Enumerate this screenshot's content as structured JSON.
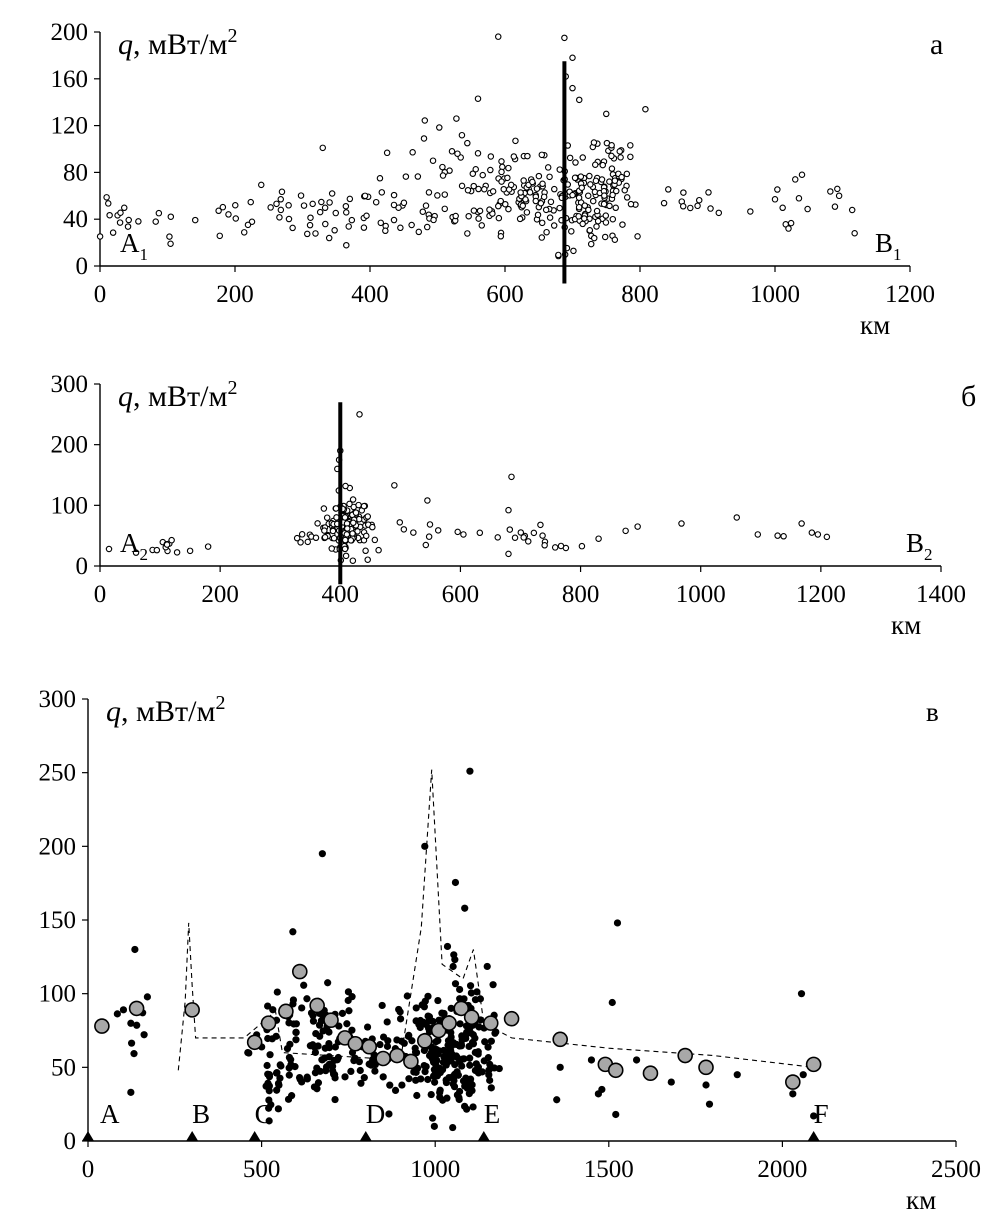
{
  "chart_data": [
    {
      "type": "scatter",
      "panel_label": "а",
      "ylabel_var": "q",
      "ylabel_unit": ", мВт/м",
      "ylabel_sup": "2",
      "xlabel": "км",
      "xlim": [
        0,
        1200
      ],
      "ylim": [
        0,
        200
      ],
      "xticks": [
        "0",
        "200",
        "400",
        "600",
        "800",
        "1000",
        "1200"
      ],
      "yticks": [
        "0",
        "40",
        "80",
        "120",
        "160",
        "200"
      ],
      "marker": "open-circle",
      "profile_start": {
        "letter": "A",
        "sub": "1"
      },
      "profile_end": {
        "letter": "B",
        "sub": "1"
      },
      "vertical_line": {
        "x": 688,
        "y1": -15,
        "y2": 175
      },
      "clusters": [
        {
          "x": 20,
          "y": 42,
          "sx": 25,
          "sy": 12,
          "n": 14
        },
        {
          "x": 120,
          "y": 40,
          "sx": 50,
          "sy": 8,
          "n": 10
        },
        {
          "x": 250,
          "y": 45,
          "sx": 30,
          "sy": 12,
          "n": 14
        },
        {
          "x": 340,
          "y": 42,
          "sx": 35,
          "sy": 12,
          "n": 30
        },
        {
          "x": 440,
          "y": 45,
          "sx": 40,
          "sy": 12,
          "n": 20
        },
        {
          "x": 540,
          "y": 70,
          "sx": 50,
          "sy": 25,
          "n": 60
        },
        {
          "x": 630,
          "y": 60,
          "sx": 35,
          "sy": 15,
          "n": 60
        },
        {
          "x": 710,
          "y": 58,
          "sx": 30,
          "sy": 20,
          "n": 120
        },
        {
          "x": 760,
          "y": 75,
          "sx": 25,
          "sy": 25,
          "n": 40
        },
        {
          "x": 880,
          "y": 55,
          "sx": 30,
          "sy": 8,
          "n": 10
        },
        {
          "x": 1030,
          "y": 50,
          "sx": 40,
          "sy": 15,
          "n": 12
        }
      ],
      "points": [
        {
          "x": 590,
          "y": 196
        },
        {
          "x": 688,
          "y": 195
        },
        {
          "x": 700,
          "y": 178
        },
        {
          "x": 690,
          "y": 162
        },
        {
          "x": 700,
          "y": 152
        },
        {
          "x": 710,
          "y": 142
        },
        {
          "x": 560,
          "y": 143
        },
        {
          "x": 808,
          "y": 134
        },
        {
          "x": 750,
          "y": 130
        },
        {
          "x": 528,
          "y": 126
        },
        {
          "x": 480,
          "y": 109
        },
        {
          "x": 330,
          "y": 101
        },
        {
          "x": 1040,
          "y": 78
        },
        {
          "x": 1095,
          "y": 60
        },
        {
          "x": 1118,
          "y": 28
        },
        {
          "x": 1000,
          "y": 57
        },
        {
          "x": 1020,
          "y": 32
        }
      ]
    },
    {
      "type": "scatter",
      "panel_label": "б",
      "ylabel_var": "q",
      "ylabel_unit": ", мВт/м",
      "ylabel_sup": "2",
      "xlabel": "км",
      "xlim": [
        0,
        1400
      ],
      "ylim": [
        0,
        300
      ],
      "xticks": [
        "0",
        "200",
        "400",
        "600",
        "800",
        "1000",
        "1200",
        "1400"
      ],
      "yticks": [
        "0",
        "100",
        "200",
        "300"
      ],
      "marker": "open-circle",
      "profile_start": {
        "letter": "A",
        "sub": "2"
      },
      "profile_end": {
        "letter": "B",
        "sub": "2"
      },
      "vertical_line": {
        "x": 400,
        "y1": -30,
        "y2": 270
      },
      "clusters": [
        {
          "x": 100,
          "y": 30,
          "sx": 15,
          "sy": 8,
          "n": 10
        },
        {
          "x": 340,
          "y": 48,
          "sx": 8,
          "sy": 6,
          "n": 6
        },
        {
          "x": 410,
          "y": 62,
          "sx": 20,
          "sy": 25,
          "n": 130
        },
        {
          "x": 540,
          "y": 60,
          "sx": 50,
          "sy": 15,
          "n": 10
        },
        {
          "x": 700,
          "y": 45,
          "sx": 30,
          "sy": 12,
          "n": 10
        },
        {
          "x": 780,
          "y": 32,
          "sx": 20,
          "sy": 4,
          "n": 6
        }
      ],
      "points": [
        {
          "x": 400,
          "y": 190
        },
        {
          "x": 398,
          "y": 175
        },
        {
          "x": 395,
          "y": 160
        },
        {
          "x": 432,
          "y": 250
        },
        {
          "x": 685,
          "y": 147
        },
        {
          "x": 680,
          "y": 92
        },
        {
          "x": 490,
          "y": 133
        },
        {
          "x": 545,
          "y": 108
        },
        {
          "x": 605,
          "y": 52
        },
        {
          "x": 680,
          "y": 20
        },
        {
          "x": 830,
          "y": 45
        },
        {
          "x": 875,
          "y": 58
        },
        {
          "x": 895,
          "y": 65
        },
        {
          "x": 968,
          "y": 70
        },
        {
          "x": 1060,
          "y": 80
        },
        {
          "x": 1095,
          "y": 52
        },
        {
          "x": 1128,
          "y": 50
        },
        {
          "x": 1138,
          "y": 49
        },
        {
          "x": 1168,
          "y": 70
        },
        {
          "x": 1185,
          "y": 55
        },
        {
          "x": 1195,
          "y": 52
        },
        {
          "x": 1210,
          "y": 48
        },
        {
          "x": 180,
          "y": 32
        },
        {
          "x": 150,
          "y": 25
        },
        {
          "x": 15,
          "y": 28
        },
        {
          "x": 60,
          "y": 22
        }
      ]
    },
    {
      "type": "scatter",
      "panel_label": "в",
      "ylabel_var": "q",
      "ylabel_unit": ", мВт/м",
      "ylabel_sup": "2",
      "xlabel": "км",
      "xlim": [
        0,
        2500
      ],
      "ylim": [
        0,
        300
      ],
      "xticks": [
        "0",
        "500",
        "1000",
        "1500",
        "2000",
        "2500"
      ],
      "yticks": [
        "0",
        "50",
        "100",
        "150",
        "200",
        "250",
        "300"
      ],
      "marker": "filled-dot",
      "profile_points": [
        {
          "label": "A",
          "x": 0
        },
        {
          "label": "B",
          "x": 300
        },
        {
          "label": "C",
          "x": 480
        },
        {
          "label": "D",
          "x": 800
        },
        {
          "label": "E",
          "x": 1140
        },
        {
          "label": "F",
          "x": 2090
        }
      ],
      "clusters": [
        {
          "x": 120,
          "y": 75,
          "sx": 20,
          "sy": 20,
          "n": 10
        },
        {
          "x": 520,
          "y": 50,
          "sx": 30,
          "sy": 20,
          "n": 30
        },
        {
          "x": 650,
          "y": 70,
          "sx": 60,
          "sy": 20,
          "n": 90
        },
        {
          "x": 800,
          "y": 60,
          "sx": 50,
          "sy": 15,
          "n": 40
        },
        {
          "x": 1020,
          "y": 60,
          "sx": 60,
          "sy": 20,
          "n": 200
        },
        {
          "x": 1120,
          "y": 70,
          "sx": 40,
          "sy": 30,
          "n": 40
        }
      ],
      "points": [
        {
          "x": 1100,
          "y": 251
        },
        {
          "x": 970,
          "y": 200
        },
        {
          "x": 675,
          "y": 195
        },
        {
          "x": 1085,
          "y": 158
        },
        {
          "x": 1525,
          "y": 148
        },
        {
          "x": 135,
          "y": 130
        },
        {
          "x": 590,
          "y": 142
        },
        {
          "x": 2055,
          "y": 100
        },
        {
          "x": 1510,
          "y": 94
        },
        {
          "x": 1360,
          "y": 50
        },
        {
          "x": 1480,
          "y": 35
        },
        {
          "x": 1520,
          "y": 18
        },
        {
          "x": 1580,
          "y": 55
        },
        {
          "x": 1680,
          "y": 40
        },
        {
          "x": 1780,
          "y": 38
        },
        {
          "x": 1790,
          "y": 25
        },
        {
          "x": 1870,
          "y": 45
        },
        {
          "x": 2030,
          "y": 32
        },
        {
          "x": 2090,
          "y": 17
        },
        {
          "x": 2060,
          "y": 45
        },
        {
          "x": 1350,
          "y": 28
        },
        {
          "x": 1450,
          "y": 55
        },
        {
          "x": 1470,
          "y": 32
        }
      ],
      "averages": [
        {
          "x": 40,
          "y": 78
        },
        {
          "x": 140,
          "y": 90
        },
        {
          "x": 300,
          "y": 89
        },
        {
          "x": 480,
          "y": 67
        },
        {
          "x": 520,
          "y": 80
        },
        {
          "x": 570,
          "y": 88
        },
        {
          "x": 610,
          "y": 115
        },
        {
          "x": 660,
          "y": 92
        },
        {
          "x": 700,
          "y": 82
        },
        {
          "x": 740,
          "y": 70
        },
        {
          "x": 770,
          "y": 66
        },
        {
          "x": 810,
          "y": 64
        },
        {
          "x": 850,
          "y": 56
        },
        {
          "x": 890,
          "y": 58
        },
        {
          "x": 930,
          "y": 54
        },
        {
          "x": 970,
          "y": 68
        },
        {
          "x": 1010,
          "y": 75
        },
        {
          "x": 1040,
          "y": 80
        },
        {
          "x": 1075,
          "y": 90
        },
        {
          "x": 1105,
          "y": 84
        },
        {
          "x": 1160,
          "y": 80
        },
        {
          "x": 1220,
          "y": 83
        },
        {
          "x": 1360,
          "y": 69
        },
        {
          "x": 1490,
          "y": 52
        },
        {
          "x": 1520,
          "y": 48
        },
        {
          "x": 1620,
          "y": 46
        },
        {
          "x": 1720,
          "y": 58
        },
        {
          "x": 1780,
          "y": 50
        },
        {
          "x": 2030,
          "y": 40
        },
        {
          "x": 2090,
          "y": 52
        }
      ],
      "trend_line": [
        {
          "x": 260,
          "y": 48
        },
        {
          "x": 280,
          "y": 95
        },
        {
          "x": 290,
          "y": 148
        },
        {
          "x": 300,
          "y": 105
        },
        {
          "x": 310,
          "y": 70
        },
        {
          "x": 450,
          "y": 70
        },
        {
          "x": 540,
          "y": 88
        },
        {
          "x": 560,
          "y": 60
        },
        {
          "x": 900,
          "y": 55
        },
        {
          "x": 960,
          "y": 145
        },
        {
          "x": 990,
          "y": 252
        },
        {
          "x": 1020,
          "y": 120
        },
        {
          "x": 1080,
          "y": 110
        },
        {
          "x": 1110,
          "y": 130
        },
        {
          "x": 1140,
          "y": 80
        },
        {
          "x": 1220,
          "y": 70
        },
        {
          "x": 1500,
          "y": 63
        },
        {
          "x": 1800,
          "y": 58
        },
        {
          "x": 2090,
          "y": 50
        }
      ]
    }
  ]
}
